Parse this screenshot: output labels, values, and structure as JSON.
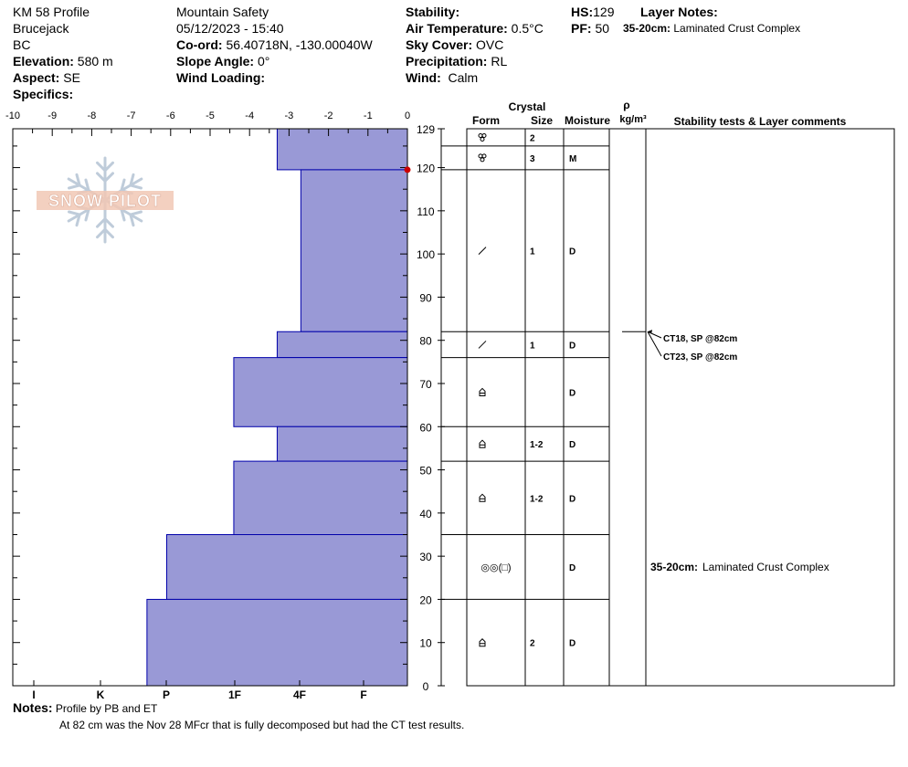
{
  "header": {
    "col1": {
      "profile_title": "KM 58 Profile",
      "location": "Brucejack",
      "region": "BC",
      "elevation_label": "Elevation:",
      "elevation_value": "580 m",
      "aspect_label": "Aspect:",
      "aspect_value": "SE",
      "specifics_label": "Specifics:"
    },
    "col2": {
      "organization": "Mountain Safety",
      "datetime": "05/12/2023 - 15:40",
      "coord_label": "Co-ord:",
      "coord_value": "56.40718N, -130.00040W",
      "slope_label": "Slope Angle:",
      "slope_value": "0°",
      "wind_loading_label": "Wind Loading:"
    },
    "col3": {
      "stability_label": "Stability:",
      "air_temp_label": "Air Temperature:",
      "air_temp_value": "0.5°C",
      "sky_label": "Sky Cover:",
      "sky_value": "OVC",
      "precip_label": "Precipitation:",
      "precip_value": "RL",
      "wind_label": "Wind:",
      "wind_value": "Calm"
    },
    "col4": {
      "hs_label": "HS:",
      "hs_value": "129",
      "pf_label": "PF:",
      "pf_value": "50",
      "layer_notes_label": "Layer Notes:",
      "layer_note_range": "35-20cm:",
      "layer_note_text": "Laminated Crust Complex"
    }
  },
  "logo_text": "SNOW PILOT",
  "chart_data": {
    "type": "bar",
    "orientation": "horizontal",
    "title": "",
    "top_axis_ticks": [
      "-10",
      "-9",
      "-8",
      "-7",
      "-6",
      "-5",
      "-4",
      "-3",
      "-2",
      "-1",
      "0"
    ],
    "temperature_range": [
      -10,
      0
    ],
    "hardness_ticks": [
      "I",
      "K",
      "P",
      "1F",
      "4F",
      "F"
    ],
    "depth_range": [
      0,
      129
    ],
    "depth_ticks": [
      "129",
      "120",
      "110",
      "100",
      "90",
      "80",
      "70",
      "60",
      "50",
      "40",
      "30",
      "20",
      "10",
      "0"
    ],
    "depth_tick_values": [
      129,
      120,
      110,
      100,
      90,
      80,
      70,
      60,
      50,
      40,
      30,
      20,
      10,
      0
    ],
    "temperature_points": [
      {
        "depth": 119.5,
        "temp": 0
      }
    ],
    "hardness_layers": [
      {
        "top": 129,
        "bottom": 119.5,
        "hardness_width": 3.3
      },
      {
        "top": 119.5,
        "bottom": 82,
        "hardness_width": 2.7
      },
      {
        "top": 82,
        "bottom": 76,
        "hardness_width": 3.3
      },
      {
        "top": 76,
        "bottom": 60,
        "hardness_width": 4.4
      },
      {
        "top": 60,
        "bottom": 52,
        "hardness_width": 3.3
      },
      {
        "top": 52,
        "bottom": 35,
        "hardness_width": 4.4
      },
      {
        "top": 35,
        "bottom": 20,
        "hardness_width": 6.1
      },
      {
        "top": 20,
        "bottom": 0,
        "hardness_width": 6.6
      }
    ],
    "bar_color": "#9999d6",
    "bar_edge_color": "#0000aa",
    "temp_color": "#cc0000",
    "table_headers": {
      "crystal": "Crystal",
      "form": "Form",
      "size": "Size",
      "moisture": "Moisture",
      "rho": "ρ",
      "density_unit": "kg/m³",
      "comments": "Stability tests & Layer comments"
    },
    "layer_rows": [
      {
        "top": 129,
        "bottom": 125,
        "form_icon": "melt-forms-icon",
        "size": "2",
        "moisture": ""
      },
      {
        "top": 125,
        "bottom": 119.5,
        "form_icon": "melt-forms-icon",
        "size": "3",
        "moisture": "M"
      },
      {
        "top": 119.5,
        "bottom": 82,
        "form_icon": "decomposing-icon",
        "size": "1",
        "moisture": "D"
      },
      {
        "top": 82,
        "bottom": 76,
        "form_icon": "decomposing-icon",
        "size": "1",
        "moisture": "D"
      },
      {
        "top": 76,
        "bottom": 60,
        "form_icon": "depth-hoar-icon",
        "size": "",
        "moisture": "D"
      },
      {
        "top": 60,
        "bottom": 52,
        "form_icon": "depth-hoar-icon",
        "size": "1-2",
        "moisture": "D"
      },
      {
        "top": 52,
        "bottom": 35,
        "form_icon": "depth-hoar-icon",
        "size": "1-2",
        "moisture": "D"
      },
      {
        "top": 35,
        "bottom": 20,
        "form_icon": "melt-freeze-faceted-icon",
        "form_text": "◎◎(□)",
        "size": "",
        "moisture": "D"
      },
      {
        "top": 20,
        "bottom": 0,
        "form_icon": "depth-hoar-icon",
        "size": "2",
        "moisture": "D"
      }
    ],
    "stability_tests": [
      {
        "text": "CT18, SP @82cm",
        "depth": 82
      },
      {
        "text": "CT23, SP @82cm",
        "depth": 82
      }
    ],
    "layer_comment": {
      "range": "35-20cm:",
      "text": "Laminated Crust Complex",
      "top": 35,
      "bottom": 20
    }
  },
  "notes": {
    "label": "Notes:",
    "line1": "Profile by PB and ET",
    "line2": "At 82 cm was the Nov 28 MFcr that is fully decomposed but had the CT test results."
  }
}
